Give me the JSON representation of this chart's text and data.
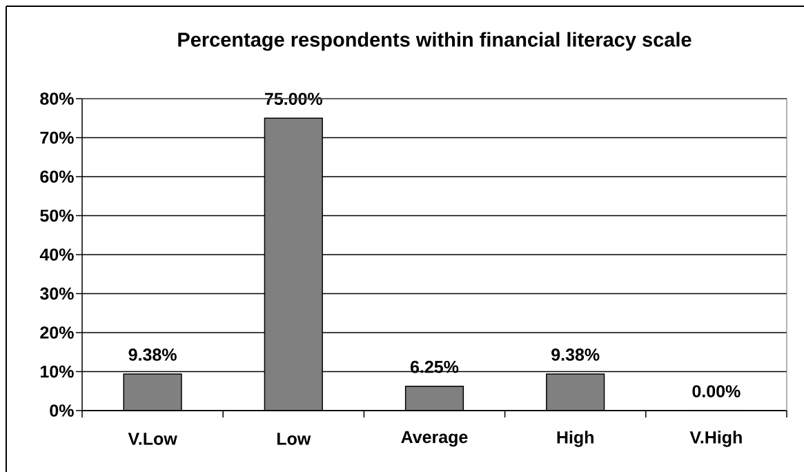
{
  "chart_data": {
    "type": "bar",
    "title": "Percentage respondents within financial literacy scale",
    "categories": [
      "V.Low",
      "Low",
      "Average",
      "High",
      "V.High"
    ],
    "values": [
      9.38,
      75,
      6.25,
      9.38,
      0
    ],
    "value_labels": [
      "9.38%",
      "75.00%",
      "6.25%",
      "9.38%",
      "0.00%"
    ],
    "color": "#808080",
    "ylim": [
      0,
      80
    ],
    "yticks": [
      {
        "value": 0,
        "label": "0%"
      },
      {
        "value": 10,
        "label": "10%"
      },
      {
        "value": 20,
        "label": "20%"
      },
      {
        "value": 30,
        "label": "30%"
      },
      {
        "value": 40,
        "label": "40%"
      },
      {
        "value": 50,
        "label": "50%"
      },
      {
        "value": 60,
        "label": "60%"
      },
      {
        "value": 70,
        "label": "70%"
      },
      {
        "value": 80,
        "label": "80%"
      }
    ],
    "grid": "y"
  }
}
